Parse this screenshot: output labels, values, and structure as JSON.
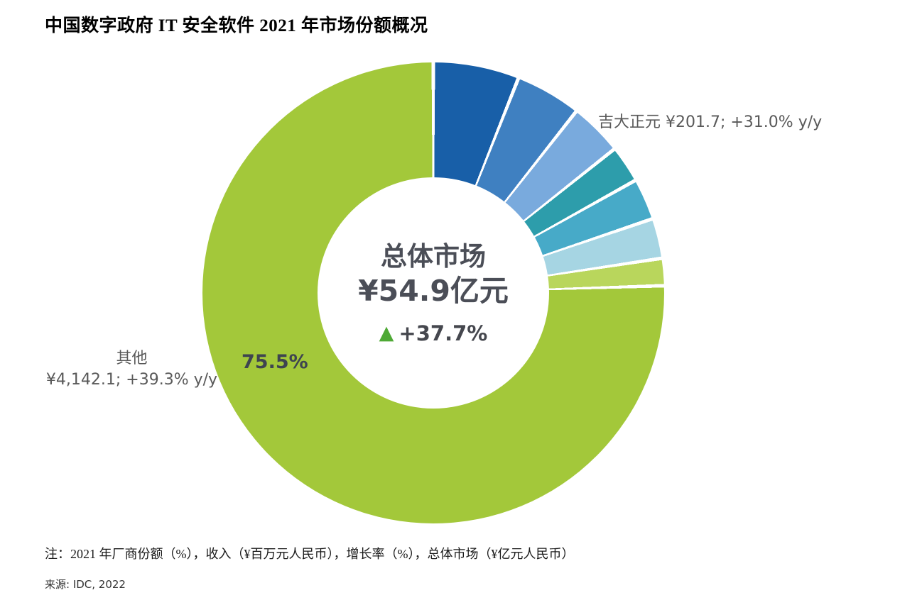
{
  "page": {
    "title": "中国数字政府 IT 安全软件 2021 年市场份额概况",
    "note": "注：2021 年厂商份额（%），收入（¥百万元人民币），增长率（%），总体市场（¥亿元人民币）",
    "source": "来源: IDC, 2022"
  },
  "chart_data": {
    "type": "pie",
    "subtype": "donut",
    "direction": "clockwise",
    "start_angle_deg": 0,
    "hole_ratio": 0.5,
    "gap_color": "#ffffff",
    "center": {
      "title": "总体市场",
      "value": "¥54.9亿元",
      "growth": "+37.7%",
      "growth_direction": "up",
      "growth_arrow_color": "#4ea935",
      "text_color": "#4b4e57"
    },
    "slices": [
      {
        "label": "",
        "share_pct": 6.0,
        "color": "#185fa8"
      },
      {
        "label": "",
        "share_pct": 4.6,
        "color": "#3f80c1"
      },
      {
        "label": "吉大正元",
        "share_pct": 3.7,
        "color": "#79aadd",
        "revenue_m_rmb": 201.7,
        "growth_yoy_pct": 31.0
      },
      {
        "label": "",
        "share_pct": 2.6,
        "color": "#2d9dab"
      },
      {
        "label": "",
        "share_pct": 2.9,
        "color": "#47aac8"
      },
      {
        "label": "",
        "share_pct": 2.8,
        "color": "#a6d5e3"
      },
      {
        "label": "",
        "share_pct": 1.9,
        "color": "#b9d65c"
      },
      {
        "label": "其他",
        "share_pct": 75.5,
        "color": "#a3c83a",
        "revenue_m_rmb": 4142.1,
        "growth_yoy_pct": 39.3
      }
    ],
    "annotations": {
      "jida": "吉大正元 ¥201.7; +31.0% y/y",
      "other_line1": "其他",
      "other_line2": "¥4,142.1; +39.3% y/y",
      "other_share": "75.5%"
    },
    "total_market": "¥54.9亿元",
    "total_growth_pct": 37.7
  }
}
